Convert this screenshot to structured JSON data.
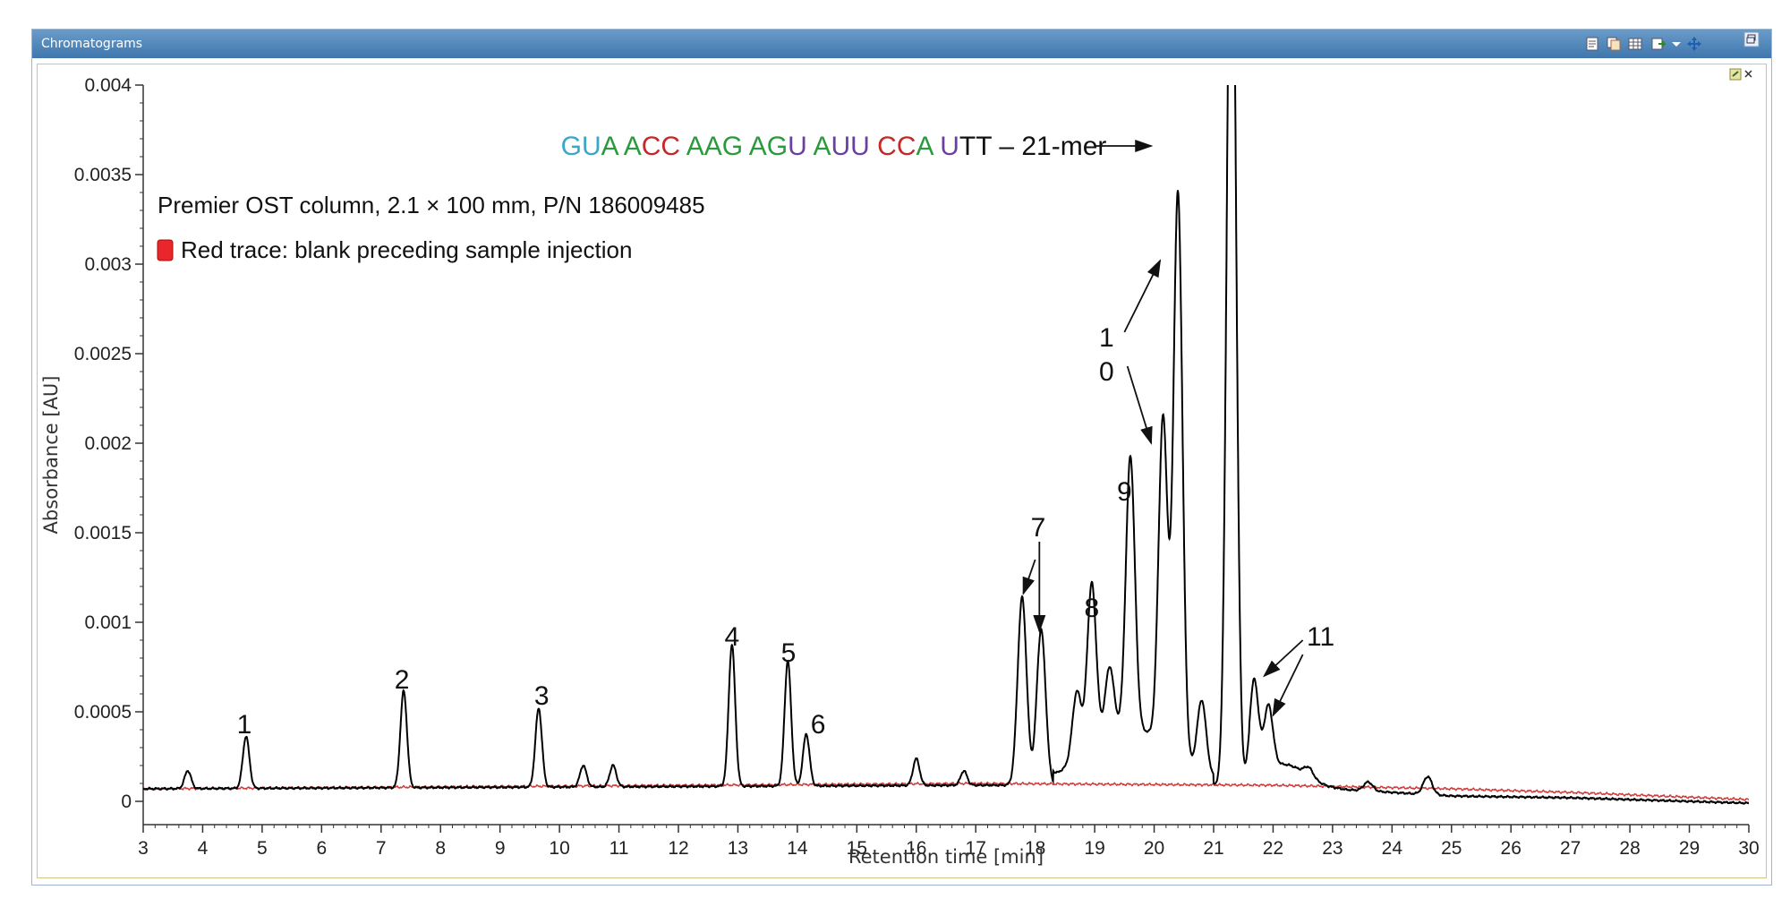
{
  "window": {
    "title": "Chromatograms"
  },
  "toolbar": {
    "icons": [
      "report-icon",
      "copy-icon",
      "table-icon",
      "export-icon",
      "dropdown-icon",
      "pan-icon",
      "restore-icon"
    ]
  },
  "colors": {
    "sample": "#000000",
    "blank": "#d03a3a",
    "seq_blue": "#3aa6c8",
    "seq_green": "#2a9a3c",
    "seq_red": "#c62828",
    "seq_purple": "#6b3fa0"
  },
  "chart_data": {
    "type": "line",
    "xlabel": "Retention time [min]",
    "ylabel": "Absorbance [AU]",
    "xlim": [
      3,
      30
    ],
    "ylim": [
      -0.0001,
      0.004
    ],
    "x_ticks": [
      3,
      4,
      5,
      6,
      7,
      8,
      9,
      10,
      11,
      12,
      13,
      14,
      15,
      16,
      17,
      18,
      19,
      20,
      21,
      22,
      23,
      24,
      25,
      26,
      27,
      28,
      29,
      30
    ],
    "y_ticks": [
      0,
      0.0005,
      0.001,
      0.0015,
      0.002,
      0.0025,
      0.003,
      0.0035,
      0.004
    ],
    "y_tick_labels": [
      "0",
      "0.0005",
      "0.001",
      "0.0015",
      "0.002",
      "0.0025",
      "0.003",
      "0.0035",
      "0.004"
    ],
    "baseline": [
      [
        3,
        7e-05
      ],
      [
        17,
        9e-05
      ],
      [
        22,
        9e-05
      ],
      [
        23.5,
        6e-05
      ],
      [
        25,
        3e-05
      ],
      [
        27,
        2e-05
      ],
      [
        30,
        -1e-05
      ]
    ],
    "blank_baseline": [
      [
        3,
        7e-05
      ],
      [
        17,
        0.0001
      ],
      [
        22,
        9e-05
      ],
      [
        25,
        7e-05
      ],
      [
        27,
        5e-05
      ],
      [
        30,
        1e-05
      ]
    ],
    "peaks": [
      {
        "rt": 3.75,
        "h": 0.0001
      },
      {
        "rt": 4.73,
        "h": 0.00029
      },
      {
        "rt": 7.38,
        "h": 0.00054
      },
      {
        "rt": 9.65,
        "h": 0.00044
      },
      {
        "rt": 10.4,
        "h": 0.00012
      },
      {
        "rt": 10.9,
        "h": 0.00012
      },
      {
        "rt": 12.9,
        "h": 0.00079
      },
      {
        "rt": 13.84,
        "h": 0.0007
      },
      {
        "rt": 14.15,
        "h": 0.00029
      },
      {
        "rt": 16.0,
        "h": 0.00015
      },
      {
        "rt": 16.8,
        "h": 8e-05
      },
      {
        "rt": 17.78,
        "h": 0.00105
      },
      {
        "rt": 18.1,
        "h": 0.00087
      },
      {
        "rt": 18.7,
        "h": 0.00038
      },
      {
        "rt": 18.95,
        "h": 0.00092
      },
      {
        "rt": 19.25,
        "h": 0.00038
      },
      {
        "rt": 19.6,
        "h": 0.00152
      },
      {
        "rt": 20.15,
        "h": 0.00182
      },
      {
        "rt": 20.4,
        "h": 0.00314
      },
      {
        "rt": 20.8,
        "h": 0.0004
      },
      {
        "rt": 21.3,
        "h": 0.0055
      },
      {
        "rt": 21.68,
        "h": 0.00055
      },
      {
        "rt": 21.92,
        "h": 0.00036
      },
      {
        "rt": 22.6,
        "h": 5e-05
      },
      {
        "rt": 23.6,
        "h": 5e-05
      },
      {
        "rt": 24.6,
        "h": 0.0001
      }
    ],
    "peak_labels": [
      {
        "text": "1",
        "x": 4.7,
        "y": 0.00038
      },
      {
        "text": "2",
        "x": 7.35,
        "y": 0.00063
      },
      {
        "text": "3",
        "x": 9.7,
        "y": 0.00054
      },
      {
        "text": "4",
        "x": 12.9,
        "y": 0.00087
      },
      {
        "text": "5",
        "x": 13.85,
        "y": 0.00078
      },
      {
        "text": "6",
        "x": 14.35,
        "y": 0.00038
      },
      {
        "text": "7",
        "x": 18.05,
        "y": 0.00148
      },
      {
        "text": "8",
        "x": 18.95,
        "y": 0.00103
      },
      {
        "text": "9",
        "x": 19.5,
        "y": 0.00168
      },
      {
        "text": "1",
        "x": 19.2,
        "y": 0.00254
      },
      {
        "text": "0",
        "x": 19.2,
        "y": 0.00235
      },
      {
        "text": "11",
        "x": 22.8,
        "y": 0.00087
      }
    ],
    "arrows": [
      {
        "from": [
          18.0,
          0.00135
        ],
        "to": [
          17.8,
          0.00116
        ]
      },
      {
        "from": [
          18.07,
          0.00145
        ],
        "to": [
          18.07,
          0.00095
        ]
      },
      {
        "from": [
          19.5,
          0.00262
        ],
        "to": [
          20.1,
          0.00302
        ]
      },
      {
        "from": [
          19.55,
          0.00243
        ],
        "to": [
          19.95,
          0.002
        ]
      },
      {
        "from": [
          22.5,
          0.0009
        ],
        "to": [
          21.85,
          0.0007
        ]
      },
      {
        "from": [
          22.5,
          0.00082
        ],
        "to": [
          22.0,
          0.00048
        ]
      },
      {
        "from": [
          19.0,
          0.00366
        ],
        "to": [
          19.95,
          0.00366
        ]
      }
    ],
    "sequence_label": {
      "x": 19.2,
      "y": 0.00366,
      "segments": [
        {
          "text": "GU",
          "color": "#3aa6c8"
        },
        {
          "text": "A ",
          "color": "#2a9a3c"
        },
        {
          "text": "A",
          "color": "#2a9a3c"
        },
        {
          "text": "CC ",
          "color": "#c62828"
        },
        {
          "text": "AAG ",
          "color": "#2a9a3c"
        },
        {
          "text": "AG",
          "color": "#2a9a3c"
        },
        {
          "text": "U ",
          "color": "#6b3fa0"
        },
        {
          "text": "A",
          "color": "#2a9a3c"
        },
        {
          "text": "UU ",
          "color": "#6b3fa0"
        },
        {
          "text": "CC",
          "color": "#c62828"
        },
        {
          "text": "A ",
          "color": "#2a9a3c"
        },
        {
          "text": "U",
          "color": "#6b3fa0"
        },
        {
          "text": "TT – 21-mer",
          "color": "#111111"
        }
      ]
    },
    "notes": {
      "column": "Premier OST column, 2.1 × 100 mm, P/N 186009485",
      "legend": "Red trace: blank preceding sample injection"
    },
    "grid": false
  }
}
